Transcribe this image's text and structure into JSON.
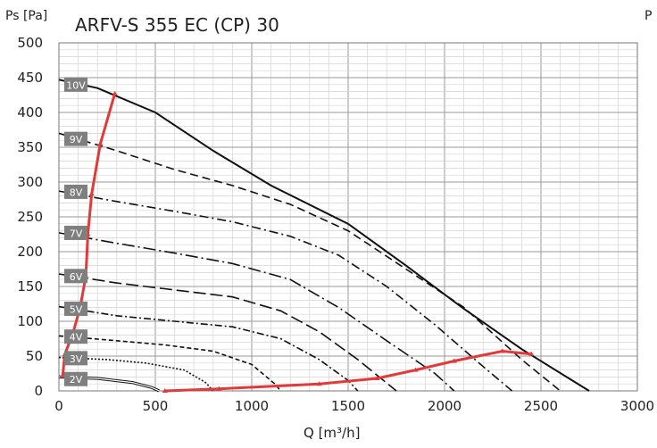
{
  "chart_data": {
    "type": "line",
    "title": "ARFV-S 355 EC (CP) 30",
    "xlabel": "Q [m³/h]",
    "ylabel": "Ps [Pa]",
    "right_label": "P",
    "xlim": [
      0,
      3000
    ],
    "ylim": [
      0,
      500
    ],
    "x_ticks": [
      "0",
      "500",
      "1000",
      "1500",
      "2000",
      "2500",
      "3000"
    ],
    "y_ticks": [
      "0",
      "50",
      "100",
      "150",
      "200",
      "250",
      "300",
      "350",
      "400",
      "450",
      "500"
    ],
    "grid": true,
    "series": [
      {
        "name": "10V",
        "style": "solid",
        "label_y": 440,
        "points": [
          [
            0,
            447
          ],
          [
            200,
            435
          ],
          [
            500,
            400
          ],
          [
            800,
            345
          ],
          [
            1100,
            295
          ],
          [
            1500,
            240
          ],
          [
            1800,
            180
          ],
          [
            2100,
            118
          ],
          [
            2400,
            60
          ],
          [
            2750,
            0
          ]
        ]
      },
      {
        "name": "9V",
        "style": "dash",
        "label_y": 362,
        "points": [
          [
            0,
            370
          ],
          [
            300,
            345
          ],
          [
            600,
            318
          ],
          [
            900,
            295
          ],
          [
            1200,
            268
          ],
          [
            1500,
            230
          ],
          [
            1800,
            175
          ],
          [
            2100,
            120
          ],
          [
            2400,
            45
          ],
          [
            2600,
            0
          ]
        ]
      },
      {
        "name": "8V",
        "style": "dashdot",
        "label_y": 286,
        "points": [
          [
            0,
            287
          ],
          [
            300,
            272
          ],
          [
            600,
            258
          ],
          [
            900,
            243
          ],
          [
            1200,
            222
          ],
          [
            1450,
            195
          ],
          [
            1700,
            150
          ],
          [
            1950,
            95
          ],
          [
            2200,
            35
          ],
          [
            2350,
            0
          ]
        ]
      },
      {
        "name": "7V",
        "style": "dashdot2",
        "label_y": 227,
        "points": [
          [
            0,
            227
          ],
          [
            300,
            212
          ],
          [
            600,
            198
          ],
          [
            900,
            183
          ],
          [
            1200,
            160
          ],
          [
            1450,
            120
          ],
          [
            1700,
            72
          ],
          [
            1950,
            25
          ],
          [
            2050,
            0
          ]
        ]
      },
      {
        "name": "6V",
        "style": "longdash",
        "label_y": 165,
        "points": [
          [
            0,
            168
          ],
          [
            300,
            155
          ],
          [
            600,
            145
          ],
          [
            900,
            135
          ],
          [
            1150,
            115
          ],
          [
            1350,
            85
          ],
          [
            1550,
            45
          ],
          [
            1750,
            0
          ]
        ]
      },
      {
        "name": "5V",
        "style": "dashdot3",
        "label_y": 118,
        "points": [
          [
            0,
            121
          ],
          [
            300,
            108
          ],
          [
            600,
            100
          ],
          [
            900,
            92
          ],
          [
            1150,
            75
          ],
          [
            1350,
            45
          ],
          [
            1500,
            15
          ],
          [
            1550,
            0
          ]
        ]
      },
      {
        "name": "4V",
        "style": "shortdash",
        "label_y": 78,
        "points": [
          [
            0,
            79
          ],
          [
            300,
            72
          ],
          [
            550,
            66
          ],
          [
            800,
            57
          ],
          [
            1000,
            38
          ],
          [
            1120,
            10
          ],
          [
            1150,
            0
          ]
        ]
      },
      {
        "name": "3V",
        "style": "dotted",
        "label_y": 47,
        "points": [
          [
            0,
            48
          ],
          [
            250,
            45
          ],
          [
            450,
            40
          ],
          [
            650,
            30
          ],
          [
            760,
            12
          ],
          [
            800,
            0
          ]
        ]
      },
      {
        "name": "2V",
        "style": "double",
        "label_y": 17,
        "points": [
          [
            0,
            20
          ],
          [
            200,
            18
          ],
          [
            380,
            12
          ],
          [
            480,
            5
          ],
          [
            520,
            0
          ]
        ]
      }
    ],
    "limit_line": {
      "color": "#e03a3a",
      "points": [
        [
          20,
          22
        ],
        [
          30,
          52
        ],
        [
          75,
          85
        ],
        [
          110,
          120
        ],
        [
          140,
          165
        ],
        [
          150,
          225
        ],
        [
          170,
          283
        ],
        [
          215,
          355
        ],
        [
          290,
          427
        ]
      ]
    },
    "operating_line": {
      "color": "#e03a3a",
      "points": [
        [
          550,
          0
        ],
        [
          830,
          3
        ],
        [
          1350,
          10
        ],
        [
          1650,
          18
        ],
        [
          1850,
          30
        ],
        [
          2050,
          43
        ],
        [
          2300,
          57
        ],
        [
          2450,
          53
        ]
      ]
    }
  }
}
